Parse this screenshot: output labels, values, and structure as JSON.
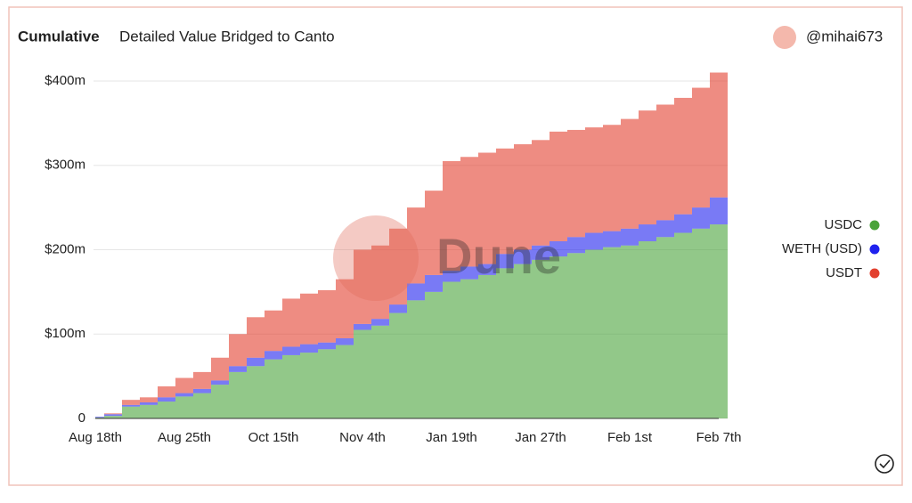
{
  "header": {
    "tag": "Cumulative",
    "title": "Detailed Value Bridged to Canto",
    "user": "@mihai673"
  },
  "watermark": "Dune",
  "chart_data": {
    "type": "bar",
    "stacked": true,
    "categories": [
      "Aug 18th",
      null,
      null,
      null,
      null,
      "Aug 25th",
      null,
      null,
      null,
      null,
      "Oct 15th",
      null,
      null,
      null,
      null,
      "Nov 4th",
      null,
      null,
      null,
      null,
      "Jan 19th",
      null,
      null,
      null,
      null,
      "Jan 27th",
      null,
      null,
      null,
      null,
      "Feb 1st",
      null,
      null,
      null,
      null,
      "Feb 7th"
    ],
    "series": [
      {
        "name": "USDC",
        "color": "#4aa33a",
        "values": [
          1,
          3,
          14,
          16,
          20,
          26,
          30,
          40,
          55,
          62,
          70,
          75,
          78,
          82,
          87,
          105,
          110,
          125,
          140,
          150,
          162,
          165,
          170,
          178,
          183,
          188,
          192,
          196,
          200,
          203,
          205,
          210,
          215,
          220,
          225,
          230
        ]
      },
      {
        "name": "WETH (USD)",
        "color": "#1f22ee",
        "values": [
          1,
          2,
          2,
          3,
          5,
          4,
          5,
          5,
          7,
          10,
          10,
          10,
          10,
          8,
          8,
          7,
          8,
          10,
          20,
          20,
          13,
          15,
          13,
          17,
          17,
          17,
          18,
          19,
          20,
          19,
          20,
          20,
          20,
          22,
          25,
          32
        ]
      },
      {
        "name": "USDT",
        "color": "#e2402f",
        "values": [
          0,
          1,
          6,
          6,
          13,
          18,
          20,
          27,
          38,
          48,
          48,
          57,
          60,
          62,
          70,
          88,
          87,
          90,
          90,
          100,
          130,
          130,
          132,
          125,
          125,
          125,
          130,
          127,
          125,
          126,
          130,
          135,
          137,
          138,
          142,
          148
        ]
      }
    ],
    "ylim": [
      0,
      410
    ],
    "yticks": [
      0,
      {
        "value": 100,
        "label": "$100m"
      },
      {
        "value": 200,
        "label": "$200m"
      },
      {
        "value": 300,
        "label": "$300m"
      },
      {
        "value": 400,
        "label": "$400m"
      }
    ],
    "grid": true,
    "legend": "right"
  }
}
